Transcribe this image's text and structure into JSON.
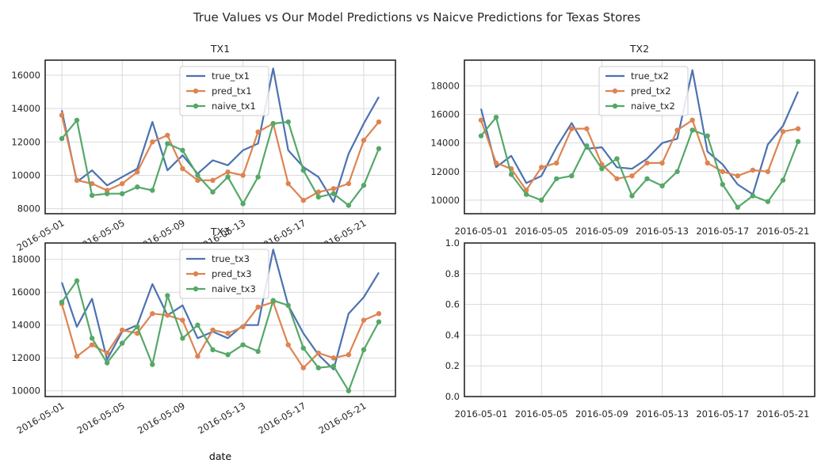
{
  "figure": {
    "suptitle": "True Values vs Our Model Predictions vs Naicve Predictions for Texas Stores",
    "xlabel": "date"
  },
  "chart_data": [
    {
      "type": "line",
      "title": "TX1",
      "xlabel": "date",
      "ylabel": "",
      "x": [
        "2016-05-01",
        "2016-05-02",
        "2016-05-03",
        "2016-05-04",
        "2016-05-05",
        "2016-05-06",
        "2016-05-07",
        "2016-05-08",
        "2016-05-09",
        "2016-05-10",
        "2016-05-11",
        "2016-05-12",
        "2016-05-13",
        "2016-05-14",
        "2016-05-15",
        "2016-05-16",
        "2016-05-17",
        "2016-05-18",
        "2016-05-19",
        "2016-05-20",
        "2016-05-21",
        "2016-05-22"
      ],
      "xticks": [
        "2016-05-01",
        "2016-05-05",
        "2016-05-09",
        "2016-05-13",
        "2016-05-17",
        "2016-05-21"
      ],
      "xtick_rotation": 30,
      "ylim": [
        7700,
        16900
      ],
      "yticks": [
        8000,
        10000,
        12000,
        14000,
        16000
      ],
      "grid": true,
      "legend": "top-center",
      "series": [
        {
          "name": "true_tx1",
          "color": "#4c72b0",
          "marker": "none",
          "values": [
            13900,
            9600,
            10300,
            9400,
            9900,
            10400,
            13200,
            10300,
            11200,
            10100,
            10900,
            10600,
            11500,
            11900,
            16400,
            11500,
            10500,
            9900,
            8400,
            11300,
            13100,
            14700
          ]
        },
        {
          "name": "pred_tx1",
          "color": "#dd8452",
          "marker": "circle",
          "values": [
            13600,
            9700,
            9500,
            9100,
            9500,
            10200,
            12000,
            12400,
            10400,
            9700,
            9700,
            10200,
            10000,
            12600,
            13100,
            9500,
            8500,
            9000,
            9200,
            9500,
            12100,
            13200
          ]
        },
        {
          "name": "naive_tx1",
          "color": "#55a868",
          "marker": "circle",
          "values": [
            12200,
            13300,
            8800,
            8900,
            8900,
            9300,
            9100,
            11900,
            11500,
            10000,
            9000,
            9900,
            8300,
            9900,
            13100,
            13200,
            10300,
            8700,
            8900,
            8200,
            9400,
            11600
          ]
        }
      ]
    },
    {
      "type": "line",
      "title": "TX2",
      "xlabel": "",
      "ylabel": "",
      "x": [
        "2016-05-01",
        "2016-05-02",
        "2016-05-03",
        "2016-05-04",
        "2016-05-05",
        "2016-05-06",
        "2016-05-07",
        "2016-05-08",
        "2016-05-09",
        "2016-05-10",
        "2016-05-11",
        "2016-05-12",
        "2016-05-13",
        "2016-05-14",
        "2016-05-15",
        "2016-05-16",
        "2016-05-17",
        "2016-05-18",
        "2016-05-19",
        "2016-05-20",
        "2016-05-21",
        "2016-05-22"
      ],
      "xticks": [
        "2016-05-01",
        "2016-05-05",
        "2016-05-09",
        "2016-05-13",
        "2016-05-17",
        "2016-05-21"
      ],
      "xtick_rotation": 0,
      "ylim": [
        9050,
        19800
      ],
      "yticks": [
        10000,
        12000,
        14000,
        16000,
        18000
      ],
      "grid": true,
      "legend": "top-center",
      "series": [
        {
          "name": "true_tx2",
          "color": "#4c72b0",
          "marker": "none",
          "values": [
            16400,
            12300,
            13100,
            11200,
            11700,
            13700,
            15400,
            13600,
            13700,
            12300,
            12200,
            12900,
            14000,
            14300,
            19100,
            13400,
            12500,
            11100,
            10400,
            13900,
            15200,
            17600
          ]
        },
        {
          "name": "pred_tx2",
          "color": "#dd8452",
          "marker": "circle",
          "values": [
            15600,
            12600,
            12200,
            10700,
            12300,
            12600,
            15000,
            15000,
            12500,
            11500,
            11700,
            12600,
            12600,
            14900,
            15600,
            12600,
            12000,
            11700,
            12100,
            12000,
            14800,
            15000
          ]
        },
        {
          "name": "naive_tx2",
          "color": "#55a868",
          "marker": "circle",
          "values": [
            14500,
            15800,
            11800,
            10400,
            10000,
            11500,
            11700,
            13800,
            12200,
            12900,
            10300,
            11500,
            11000,
            12000,
            14900,
            14500,
            11100,
            9500,
            10300,
            9900,
            11400,
            14100
          ]
        }
      ]
    },
    {
      "type": "line",
      "title": "TX3",
      "xlabel": "date",
      "ylabel": "",
      "x": [
        "2016-05-01",
        "2016-05-02",
        "2016-05-03",
        "2016-05-04",
        "2016-05-05",
        "2016-05-06",
        "2016-05-07",
        "2016-05-08",
        "2016-05-09",
        "2016-05-10",
        "2016-05-11",
        "2016-05-12",
        "2016-05-13",
        "2016-05-14",
        "2016-05-15",
        "2016-05-16",
        "2016-05-17",
        "2016-05-18",
        "2016-05-19",
        "2016-05-20",
        "2016-05-21",
        "2016-05-22"
      ],
      "xticks": [
        "2016-05-01",
        "2016-05-05",
        "2016-05-09",
        "2016-05-13",
        "2016-05-17",
        "2016-05-21"
      ],
      "xtick_rotation": 30,
      "ylim": [
        9650,
        19000
      ],
      "yticks": [
        10000,
        12000,
        14000,
        16000,
        18000
      ],
      "grid": true,
      "legend": "top-center",
      "series": [
        {
          "name": "true_tx3",
          "color": "#4c72b0",
          "marker": "none",
          "values": [
            16600,
            13900,
            15600,
            11900,
            13600,
            14000,
            16500,
            14600,
            15200,
            13200,
            13600,
            13200,
            14000,
            14000,
            18600,
            15200,
            13500,
            12200,
            11300,
            14700,
            15700,
            17200
          ]
        },
        {
          "name": "pred_tx3",
          "color": "#dd8452",
          "marker": "circle",
          "values": [
            15300,
            12100,
            12800,
            12300,
            13700,
            13500,
            14700,
            14600,
            14300,
            12100,
            13700,
            13500,
            13900,
            15100,
            15400,
            12800,
            11400,
            12300,
            12000,
            12200,
            14300,
            14700
          ]
        },
        {
          "name": "naive_tx3",
          "color": "#55a868",
          "marker": "circle",
          "values": [
            15400,
            16700,
            13200,
            11700,
            12900,
            13900,
            11600,
            15800,
            13200,
            14000,
            12500,
            12200,
            12800,
            12400,
            15500,
            15200,
            12600,
            11400,
            11500,
            10000,
            12500,
            14200
          ]
        }
      ]
    },
    {
      "type": "line",
      "title": "",
      "xlabel": "",
      "ylabel": "",
      "empty": true,
      "xticks": [
        "2016-05-01",
        "2016-05-05",
        "2016-05-09",
        "2016-05-13",
        "2016-05-17",
        "2016-05-21"
      ],
      "xtick_rotation": 0,
      "ylim": [
        0,
        1
      ],
      "yticks": [
        "0.0",
        "0.2",
        "0.4",
        "0.6",
        "0.8",
        "1.0"
      ],
      "grid": true,
      "series": []
    }
  ]
}
